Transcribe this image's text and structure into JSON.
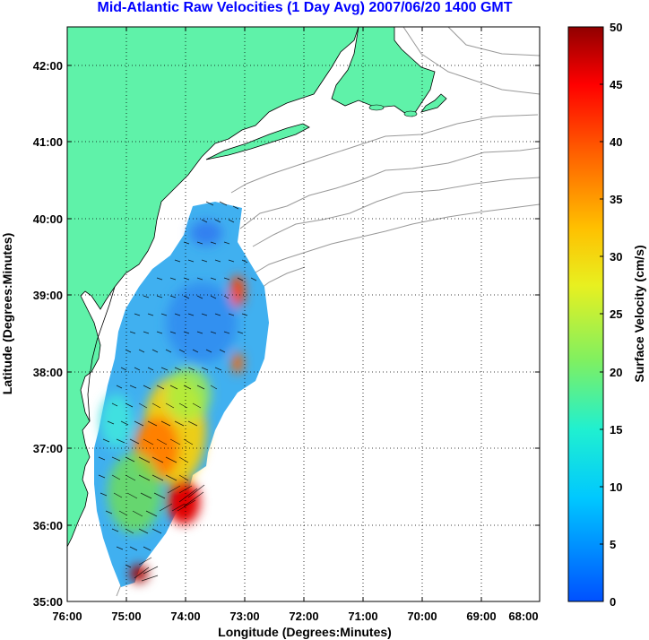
{
  "title": "Mid-Atlantic Raw Velocities (1 Day Avg) 2007/06/20 1400 GMT",
  "xlabel": "Longitude (Degrees:Minutes)",
  "ylabel": "Latitude (Degrees:Minutes)",
  "colorbar": {
    "label": "Surface Velocity (cm/s)",
    "min": 0,
    "max": 50,
    "tick_labels": [
      "50",
      "45",
      "40",
      "35",
      "30",
      "25",
      "20",
      "15",
      "10",
      "5",
      "0"
    ]
  },
  "x_tick_labels": [
    "76:00",
    "75:00",
    "74:00",
    "73:00",
    "72:00",
    "71:00",
    "70:00",
    "69:00",
    "68:00"
  ],
  "y_tick_labels": [
    "42:00",
    "41:00",
    "40:00",
    "39:00",
    "38:00",
    "37:00",
    "36:00",
    "35:00"
  ],
  "colors": {
    "land": "#5ff2a9",
    "title": "#0000ff",
    "bathymetry": "#999999"
  }
}
